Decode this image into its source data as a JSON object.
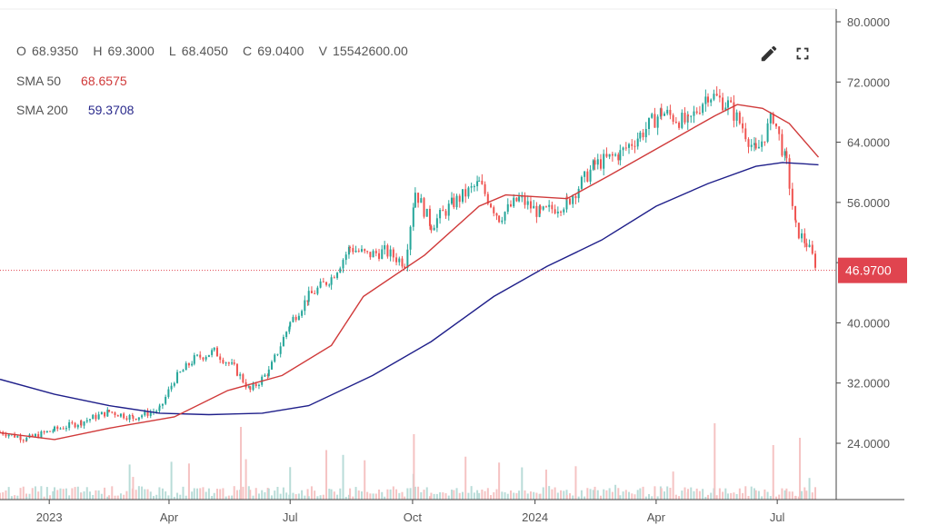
{
  "header": {
    "ohlcv": [
      {
        "key": "O",
        "value": "68.9350"
      },
      {
        "key": "H",
        "value": "69.3000"
      },
      {
        "key": "L",
        "value": "68.4050"
      },
      {
        "key": "C",
        "value": "69.0400"
      },
      {
        "key": "V",
        "value": "15542600.00"
      }
    ],
    "indicators": [
      {
        "name": "SMA 50",
        "value": "68.6575",
        "color": "#d03a3a"
      },
      {
        "name": "SMA 200",
        "value": "59.3708",
        "color": "#2a2a8c"
      }
    ]
  },
  "toolbar": {
    "edit_icon": "pencil-icon",
    "fullscreen_icon": "fullscreen-icon"
  },
  "colors": {
    "up": "#26a69a",
    "down": "#ef5350",
    "sma50": "#d03a3a",
    "sma200": "#1f1f8a",
    "price_tag": "#e0444f",
    "volume_up": "#b9dcd8",
    "volume_down": "#f5c3c3"
  },
  "chart_data": {
    "type": "candlestick",
    "title": "",
    "y_axis": {
      "position": "right",
      "range": [
        20,
        81
      ],
      "ticks": [
        "24.0000",
        "32.0000",
        "40.0000",
        "48.0000",
        "56.0000",
        "64.0000",
        "72.0000",
        "80.0000"
      ]
    },
    "x_axis": {
      "ticks": [
        "2023",
        "Apr",
        "Jul",
        "Oct",
        "2024",
        "Apr",
        "Jul"
      ]
    },
    "last_price": {
      "value": 46.97,
      "label": "46.9700"
    },
    "price_series": {
      "name": "",
      "points": [
        [
          "2022-11-25",
          25.5
        ],
        [
          "2022-12-15",
          24.6
        ],
        [
          "2023-01-05",
          25.8
        ],
        [
          "2023-01-25",
          26.8
        ],
        [
          "2023-02-15",
          28.2
        ],
        [
          "2023-03-05",
          27.4
        ],
        [
          "2023-03-25",
          28.5
        ],
        [
          "2023-04-05",
          32.5
        ],
        [
          "2023-04-20",
          35.2
        ],
        [
          "2023-05-05",
          36.2
        ],
        [
          "2023-05-20",
          34.0
        ],
        [
          "2023-06-01",
          31.0
        ],
        [
          "2023-06-15",
          33.5
        ],
        [
          "2023-07-01",
          40.0
        ],
        [
          "2023-07-15",
          43.5
        ],
        [
          "2023-08-01",
          46.0
        ],
        [
          "2023-08-15",
          50.0
        ],
        [
          "2023-08-28",
          49.0
        ],
        [
          "2023-09-10",
          49.5
        ],
        [
          "2023-09-25",
          48.0
        ],
        [
          "2023-10-03",
          57.5
        ],
        [
          "2023-10-15",
          53.0
        ],
        [
          "2023-11-01",
          56.0
        ],
        [
          "2023-11-20",
          58.5
        ],
        [
          "2023-12-05",
          54.0
        ],
        [
          "2023-12-20",
          56.5
        ],
        [
          "2024-01-05",
          54.5
        ],
        [
          "2024-01-25",
          56.0
        ],
        [
          "2024-02-15",
          61.0
        ],
        [
          "2024-03-05",
          62.5
        ],
        [
          "2024-03-20",
          65.0
        ],
        [
          "2024-04-05",
          68.0
        ],
        [
          "2024-04-25",
          66.5
        ],
        [
          "2024-05-10",
          70.5
        ],
        [
          "2024-05-25",
          69.0
        ],
        [
          "2024-06-05",
          66.0
        ],
        [
          "2024-06-15",
          62.5
        ],
        [
          "2024-06-28",
          67.5
        ],
        [
          "2024-07-08",
          61.0
        ],
        [
          "2024-07-15",
          52.5
        ],
        [
          "2024-07-23",
          50.5
        ],
        [
          "2024-08-01",
          46.97
        ]
      ]
    },
    "sma50": {
      "name": "SMA 50",
      "values": [
        [
          "2022-11-25",
          25.4
        ],
        [
          "2023-01-05",
          24.5
        ],
        [
          "2023-02-15",
          26.0
        ],
        [
          "2023-04-05",
          27.5
        ],
        [
          "2023-05-15",
          31.0
        ],
        [
          "2023-06-25",
          33.0
        ],
        [
          "2023-08-01",
          37.0
        ],
        [
          "2023-08-25",
          43.5
        ],
        [
          "2023-10-10",
          49.0
        ],
        [
          "2023-11-20",
          55.5
        ],
        [
          "2023-12-10",
          57.0
        ],
        [
          "2024-01-25",
          56.5
        ],
        [
          "2024-02-25",
          59.5
        ],
        [
          "2024-04-10",
          64.0
        ],
        [
          "2024-05-15",
          67.5
        ],
        [
          "2024-06-01",
          69.0
        ],
        [
          "2024-06-20",
          68.5
        ],
        [
          "2024-07-10",
          66.5
        ],
        [
          "2024-08-01",
          62.0
        ]
      ]
    },
    "sma200": {
      "name": "SMA 200",
      "values": [
        [
          "2022-11-25",
          32.5
        ],
        [
          "2023-01-05",
          30.5
        ],
        [
          "2023-02-15",
          29.0
        ],
        [
          "2023-03-25",
          28.0
        ],
        [
          "2023-05-01",
          27.8
        ],
        [
          "2023-06-10",
          28.0
        ],
        [
          "2023-07-15",
          29.0
        ],
        [
          "2023-09-01",
          33.0
        ],
        [
          "2023-10-15",
          37.5
        ],
        [
          "2023-12-01",
          43.5
        ],
        [
          "2024-01-10",
          47.5
        ],
        [
          "2024-02-20",
          51.0
        ],
        [
          "2024-04-01",
          55.5
        ],
        [
          "2024-05-10",
          58.5
        ],
        [
          "2024-06-15",
          60.8
        ],
        [
          "2024-07-05",
          61.3
        ],
        [
          "2024-08-01",
          61.0
        ]
      ]
    }
  }
}
